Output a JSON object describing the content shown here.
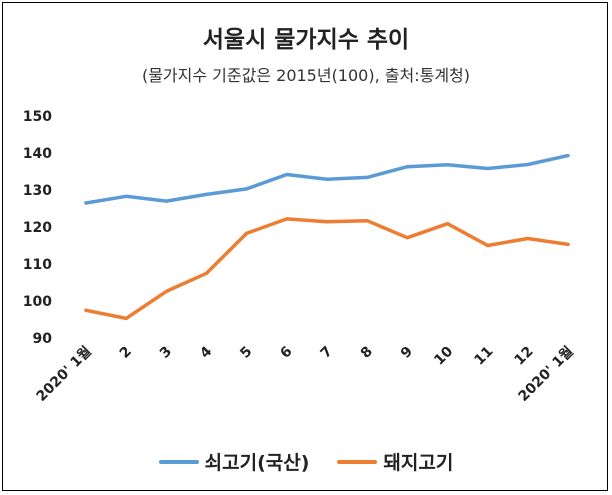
{
  "chart_data": {
    "type": "line",
    "title": "서울시 물가지수 추이",
    "subtitle": "(물가지수 기준값은 2015년(100), 출처:통계청)",
    "categories": [
      "2020' 1월",
      "2",
      "3",
      "4",
      "5",
      "6",
      "7",
      "8",
      "9",
      "10",
      "11",
      "12",
      "2020' 1월"
    ],
    "series": [
      {
        "name": "쇠고기(국산)",
        "color": "#5b9bd5",
        "values": [
          126.5,
          128.3,
          127.0,
          128.8,
          130.3,
          134.2,
          132.9,
          133.4,
          136.3,
          136.8,
          135.8,
          136.9,
          139.3
        ]
      },
      {
        "name": "돼지고기",
        "color": "#ed7d31",
        "values": [
          97.5,
          95.3,
          102.6,
          107.5,
          118.3,
          122.2,
          121.4,
          121.7,
          117.1,
          120.9,
          115.0,
          116.9,
          115.3
        ]
      }
    ],
    "ylim": [
      90,
      150
    ],
    "yticks": [
      90,
      100,
      110,
      120,
      130,
      140,
      150
    ],
    "grid": false,
    "legend_position": "bottom"
  }
}
